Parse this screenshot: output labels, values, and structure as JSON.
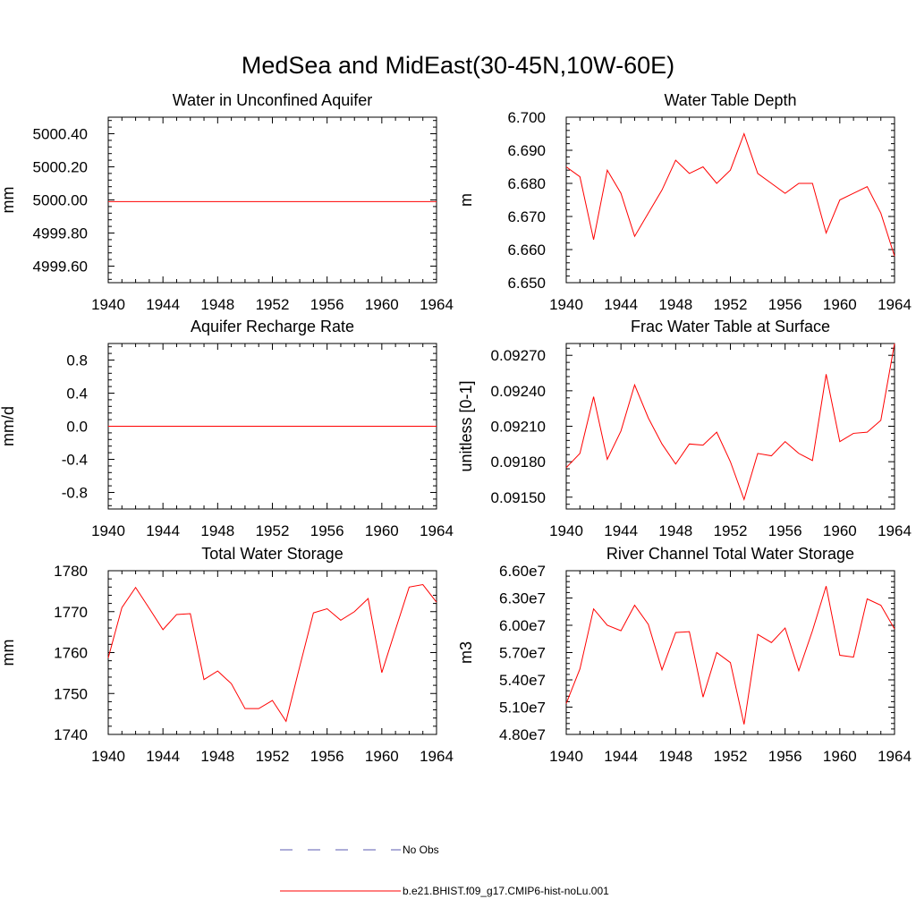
{
  "figure_title": "MedSea and MidEast(30-45N,10W-60E)",
  "legend": [
    {
      "label": "No Obs",
      "color": "#5b5bb0",
      "dash": true
    },
    {
      "label": "b.e21.BHIST.f09_g17.CMIP6-hist-noLu.001",
      "color": "#ff0000",
      "dash": false
    }
  ],
  "chart_data": [
    {
      "type": "line",
      "title": "Water in Unconfined Aquifer",
      "xlabel": "",
      "ylabel": "mm",
      "xlim": [
        1940,
        1964
      ],
      "ylim": [
        4999.5,
        5000.5
      ],
      "xticks": [
        1940,
        1944,
        1948,
        1952,
        1956,
        1960,
        1964
      ],
      "yticks": [
        4999.6,
        4999.8,
        5000.0,
        5000.2,
        5000.4
      ],
      "ytick_labels": [
        "4999.60",
        "4999.80",
        "5000.00",
        "5000.20",
        "5000.40"
      ],
      "series": [
        {
          "color": "#ff0000",
          "x": [
            1940,
            1941,
            1942,
            1943,
            1944,
            1945,
            1946,
            1947,
            1948,
            1949,
            1950,
            1951,
            1952,
            1953,
            1954,
            1955,
            1956,
            1957,
            1958,
            1959,
            1960,
            1961,
            1962,
            1963,
            1964
          ],
          "y": [
            4999.99,
            4999.99,
            4999.99,
            4999.99,
            4999.99,
            4999.99,
            4999.99,
            4999.99,
            4999.99,
            4999.99,
            4999.99,
            4999.99,
            4999.99,
            4999.99,
            4999.99,
            4999.99,
            4999.99,
            4999.99,
            4999.99,
            4999.99,
            4999.99,
            4999.99,
            4999.99,
            4999.99,
            4999.99
          ]
        }
      ]
    },
    {
      "type": "line",
      "title": "Water Table Depth",
      "xlabel": "",
      "ylabel": "m",
      "xlim": [
        1940,
        1964
      ],
      "ylim": [
        6.65,
        6.7
      ],
      "xticks": [
        1940,
        1944,
        1948,
        1952,
        1956,
        1960,
        1964
      ],
      "yticks": [
        6.65,
        6.66,
        6.67,
        6.68,
        6.69,
        6.7
      ],
      "ytick_labels": [
        "6.650",
        "6.660",
        "6.670",
        "6.680",
        "6.690",
        "6.700"
      ],
      "series": [
        {
          "color": "#ff0000",
          "x": [
            1940,
            1941,
            1942,
            1943,
            1944,
            1945,
            1946,
            1947,
            1948,
            1949,
            1950,
            1951,
            1952,
            1953,
            1954,
            1955,
            1956,
            1957,
            1958,
            1959,
            1960,
            1961,
            1962,
            1963,
            1964
          ],
          "y": [
            6.685,
            6.682,
            6.663,
            6.684,
            6.677,
            6.664,
            6.671,
            6.678,
            6.687,
            6.683,
            6.685,
            6.68,
            6.684,
            6.695,
            6.683,
            6.68,
            6.677,
            6.68,
            6.68,
            6.665,
            6.675,
            6.677,
            6.679,
            6.671,
            6.658
          ]
        }
      ]
    },
    {
      "type": "line",
      "title": "Aquifer Recharge Rate",
      "xlabel": "",
      "ylabel": "mm/d",
      "xlim": [
        1940,
        1964
      ],
      "ylim": [
        -1.0,
        1.0
      ],
      "xticks": [
        1940,
        1944,
        1948,
        1952,
        1956,
        1960,
        1964
      ],
      "yticks": [
        -0.8,
        -0.4,
        0.0,
        0.4,
        0.8
      ],
      "ytick_labels": [
        "-0.8",
        "-0.4",
        "0.0",
        "0.4",
        "0.8"
      ],
      "series": [
        {
          "color": "#ff0000",
          "x": [
            1940,
            1941,
            1942,
            1943,
            1944,
            1945,
            1946,
            1947,
            1948,
            1949,
            1950,
            1951,
            1952,
            1953,
            1954,
            1955,
            1956,
            1957,
            1958,
            1959,
            1960,
            1961,
            1962,
            1963,
            1964
          ],
          "y": [
            0,
            0,
            0,
            0,
            0,
            0,
            0,
            0,
            0,
            0,
            0,
            0,
            0,
            0,
            0,
            0,
            0,
            0,
            0,
            0,
            0,
            0,
            0,
            0,
            0
          ]
        }
      ]
    },
    {
      "type": "line",
      "title": "Frac Water Table at Surface",
      "xlabel": "",
      "ylabel": "unitless [0-1]",
      "xlim": [
        1940,
        1964
      ],
      "ylim": [
        0.0914,
        0.0928
      ],
      "xticks": [
        1940,
        1944,
        1948,
        1952,
        1956,
        1960,
        1964
      ],
      "yticks": [
        0.0915,
        0.0918,
        0.0921,
        0.0924,
        0.0927
      ],
      "ytick_labels": [
        "0.09150",
        "0.09180",
        "0.09210",
        "0.09240",
        "0.09270"
      ],
      "series": [
        {
          "color": "#ff0000",
          "x": [
            1940,
            1941,
            1942,
            1943,
            1944,
            1945,
            1946,
            1947,
            1948,
            1949,
            1950,
            1951,
            1952,
            1953,
            1954,
            1955,
            1956,
            1957,
            1958,
            1959,
            1960,
            1961,
            1962,
            1963,
            1964
          ],
          "y": [
            0.09175,
            0.09187,
            0.09235,
            0.09182,
            0.09206,
            0.09245,
            0.09217,
            0.09195,
            0.09178,
            0.09195,
            0.09194,
            0.09205,
            0.0918,
            0.09148,
            0.09187,
            0.09185,
            0.09197,
            0.09187,
            0.09181,
            0.09254,
            0.09197,
            0.09204,
            0.09205,
            0.09215,
            0.0928
          ]
        }
      ]
    },
    {
      "type": "line",
      "title": "Total Water Storage",
      "xlabel": "",
      "ylabel": "mm",
      "xlim": [
        1940,
        1964
      ],
      "ylim": [
        1740,
        1780
      ],
      "xticks": [
        1940,
        1944,
        1948,
        1952,
        1956,
        1960,
        1964
      ],
      "yticks": [
        1740,
        1750,
        1760,
        1770,
        1780
      ],
      "ytick_labels": [
        "1740",
        "1750",
        "1760",
        "1770",
        "1780"
      ],
      "series": [
        {
          "color": "#ff0000",
          "x": [
            1940,
            1941,
            1942,
            1943,
            1944,
            1945,
            1946,
            1947,
            1948,
            1949,
            1950,
            1951,
            1952,
            1953,
            1954,
            1955,
            1956,
            1957,
            1958,
            1959,
            1960,
            1961,
            1962,
            1963,
            1964
          ],
          "y": [
            1758.7,
            1771.0,
            1775.9,
            1770.8,
            1765.6,
            1769.3,
            1769.5,
            1753.4,
            1755.5,
            1752.4,
            1746.3,
            1746.3,
            1748.3,
            1743.2,
            1756.6,
            1769.7,
            1770.7,
            1767.9,
            1770.0,
            1773.2,
            1755.1,
            1765.6,
            1776.0,
            1776.6,
            1772.3
          ]
        }
      ]
    },
    {
      "type": "line",
      "title": "River Channel Total Water Storage",
      "xlabel": "",
      "ylabel": "m3",
      "xlim": [
        1940,
        1964
      ],
      "ylim": [
        48000000,
        66000000
      ],
      "xticks": [
        1940,
        1944,
        1948,
        1952,
        1956,
        1960,
        1964
      ],
      "yticks": [
        48000000,
        51000000,
        54000000,
        57000000,
        60000000,
        63000000,
        66000000
      ],
      "ytick_labels": [
        "4.80e7",
        "5.10e7",
        "5.40e7",
        "5.70e7",
        "6.00e7",
        "6.30e7",
        "6.60e7"
      ],
      "series": [
        {
          "color": "#ff0000",
          "x": [
            1940,
            1941,
            1942,
            1943,
            1944,
            1945,
            1946,
            1947,
            1948,
            1949,
            1950,
            1951,
            1952,
            1953,
            1954,
            1955,
            1956,
            1957,
            1958,
            1959,
            1960,
            1961,
            1962,
            1963,
            1964
          ],
          "y": [
            51400000,
            55200000,
            61800000,
            60000000,
            59400000,
            62200000,
            60100000,
            55100000,
            59200000,
            59300000,
            52100000,
            57000000,
            55900000,
            49100000,
            59000000,
            58100000,
            59700000,
            55000000,
            59400000,
            64300000,
            56700000,
            56500000,
            62900000,
            62200000,
            59600000
          ]
        }
      ]
    }
  ]
}
